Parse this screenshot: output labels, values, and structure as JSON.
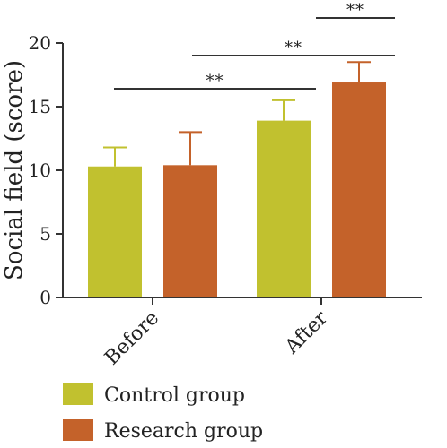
{
  "chart_data": {
    "type": "bar",
    "categories": [
      "Before",
      "After"
    ],
    "series": [
      {
        "name": "Control group",
        "values": [
          10.3,
          13.9
        ],
        "errors": [
          1.5,
          1.6
        ],
        "color": "#c1c12f"
      },
      {
        "name": "Research group",
        "values": [
          10.4,
          16.9
        ],
        "errors": [
          2.6,
          1.6
        ],
        "color": "#c4622a"
      }
    ],
    "ylabel": "Social field (score)",
    "ylim": [
      0,
      20
    ],
    "yticks": [
      0,
      5,
      10,
      15,
      20
    ],
    "grid": false,
    "legend_position": "bottom-left",
    "significance": [
      {
        "from": "Before-Control",
        "to": "After-Control",
        "label": "**"
      },
      {
        "from": "Before-Research",
        "to": "After-Research",
        "label": "**"
      },
      {
        "from": "After-Control",
        "to": "After-Research",
        "label": "**"
      }
    ]
  }
}
